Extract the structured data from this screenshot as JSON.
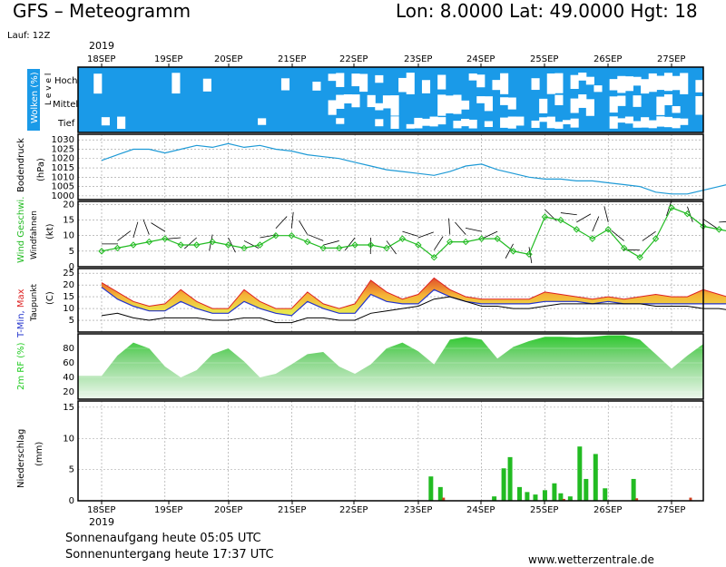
{
  "header": {
    "title": "GFS – Meteogramm",
    "location": "Lon: 8.0000  Lat: 49.0000  Hgt: 18",
    "run": "Lauf: 12Z",
    "year": "2019"
  },
  "footer": {
    "sunrise": "Sonnenaufgang heute 05:05 UTC",
    "sunset": "Sonnenuntergang heute 17:37 UTC",
    "url": "www.wetterzentrale.de"
  },
  "dates": [
    "18SEP",
    "19SEP",
    "20SEP",
    "21SEP",
    "22SEP",
    "23SEP",
    "24SEP",
    "25SEP",
    "26SEP",
    "27SEP"
  ],
  "colors": {
    "cloud": "#1a9ae8",
    "pressure": "#1e9ad6",
    "wind": "#22bb22",
    "rf": "#22cc22",
    "precip": "#22bb22",
    "precip_conv": "#d04020",
    "tmin": "#2233cc",
    "tmax": "#dd2222"
  },
  "chart_data": [
    {
      "type": "heatmap",
      "ylabel": "Wolken (%)",
      "ylabel2": "L e v e l",
      "levels": [
        "Hoch",
        "Mittel",
        "Tief"
      ]
    },
    {
      "type": "line",
      "ylabel": "Bodendruck",
      "ylabel2": "(hPa)",
      "ylim": [
        998,
        1033
      ],
      "yticks": [
        1000,
        1005,
        1010,
        1015,
        1020,
        1025,
        1030
      ],
      "x": [
        0,
        0.25,
        0.5,
        0.75,
        1,
        1.25,
        1.5,
        1.75,
        2,
        2.25,
        2.5,
        2.75,
        3,
        3.25,
        3.5,
        3.75,
        4,
        4.25,
        4.5,
        4.75,
        5,
        5.25,
        5.5,
        5.75,
        6,
        6.25,
        6.5,
        6.75,
        7,
        7.25,
        7.5,
        7.75,
        8,
        8.25,
        8.5,
        8.75,
        9,
        9.25,
        9.5,
        9.75,
        10,
        10.25
      ],
      "values": [
        1019,
        1022,
        1025,
        1025,
        1023,
        1025,
        1027,
        1026,
        1028,
        1026,
        1027,
        1025,
        1024,
        1022,
        1021,
        1020,
        1018,
        1016,
        1014,
        1013,
        1012,
        1011,
        1013,
        1016,
        1017,
        1014,
        1012,
        1010,
        1009,
        1009,
        1008,
        1008,
        1007,
        1006,
        1005,
        1002,
        1001,
        1001,
        1003,
        1005,
        1007,
        1010
      ]
    },
    {
      "type": "line",
      "ylabel": "Wind Geschwi.",
      "ylabel2": "Windfahnen",
      "ylabel3": "(kt)",
      "ylim": [
        0,
        21
      ],
      "yticks": [
        0,
        5,
        10,
        15,
        20
      ],
      "x": [
        0,
        0.25,
        0.5,
        0.75,
        1,
        1.25,
        1.5,
        1.75,
        2,
        2.25,
        2.5,
        2.75,
        3,
        3.25,
        3.5,
        3.75,
        4,
        4.25,
        4.5,
        4.75,
        5,
        5.25,
        5.5,
        5.75,
        6,
        6.25,
        6.5,
        6.75,
        7,
        7.25,
        7.5,
        7.75,
        8,
        8.25,
        8.5,
        8.75,
        9,
        9.25,
        9.5,
        9.75,
        10,
        10.25
      ],
      "values": [
        5,
        6,
        7,
        8,
        9,
        7,
        7,
        8,
        7,
        6,
        7,
        10,
        10,
        8,
        6,
        6,
        7,
        7,
        6,
        9,
        7,
        3,
        8,
        8,
        9,
        9,
        5,
        4,
        16,
        15,
        12,
        9,
        12,
        6,
        3,
        9,
        19,
        17,
        13,
        12,
        11,
        11
      ]
    },
    {
      "type": "area",
      "ylabel": "T-Min, Max",
      "ylabel2": "Taupunkt",
      "ylabel3": "(C)",
      "ylim": [
        0,
        27
      ],
      "yticks": [
        5,
        10,
        15,
        20,
        25
      ],
      "x": [
        0,
        0.25,
        0.5,
        0.75,
        1,
        1.25,
        1.5,
        1.75,
        2,
        2.25,
        2.5,
        2.75,
        3,
        3.25,
        3.5,
        3.75,
        4,
        4.25,
        4.5,
        4.75,
        5,
        5.25,
        5.5,
        5.75,
        6,
        6.25,
        6.5,
        6.75,
        7,
        7.25,
        7.5,
        7.75,
        8,
        8.25,
        8.5,
        8.75,
        9,
        9.25,
        9.5,
        9.75,
        10,
        10.25
      ],
      "series": [
        {
          "name": "T-Min",
          "values": [
            19,
            14,
            11,
            9,
            9,
            13,
            10,
            8,
            8,
            13,
            10,
            8,
            7,
            13,
            10,
            8,
            8,
            16,
            13,
            12,
            12,
            18,
            15,
            13,
            12,
            12,
            12,
            12,
            13,
            13,
            13,
            12,
            13,
            12,
            12,
            12,
            12,
            12,
            12,
            12,
            12,
            12
          ]
        },
        {
          "name": "Max",
          "values": [
            21,
            17,
            13,
            11,
            12,
            18,
            13,
            10,
            10,
            18,
            13,
            10,
            10,
            17,
            12,
            10,
            12,
            22,
            17,
            14,
            16,
            23,
            18,
            15,
            14,
            14,
            14,
            14,
            17,
            16,
            15,
            14,
            15,
            14,
            15,
            16,
            15,
            15,
            18,
            16,
            14,
            15
          ]
        },
        {
          "name": "Taupunkt",
          "values": [
            7,
            8,
            6,
            5,
            6,
            6,
            6,
            5,
            5,
            6,
            6,
            4,
            4,
            6,
            6,
            5,
            5,
            8,
            9,
            10,
            11,
            14,
            15,
            13,
            11,
            11,
            10,
            10,
            11,
            12,
            12,
            12,
            12,
            12,
            12,
            11,
            11,
            11,
            10,
            10,
            9,
            9
          ]
        }
      ]
    },
    {
      "type": "area",
      "ylabel": "2m RF (%)",
      "ylim": [
        10,
        100
      ],
      "yticks": [
        20,
        40,
        60,
        80
      ],
      "x": [
        0,
        0.25,
        0.5,
        0.75,
        1,
        1.25,
        1.5,
        1.75,
        2,
        2.25,
        2.5,
        2.75,
        3,
        3.25,
        3.5,
        3.75,
        4,
        4.25,
        4.5,
        4.75,
        5,
        5.25,
        5.5,
        5.75,
        6,
        6.25,
        6.5,
        6.75,
        7,
        7.25,
        7.5,
        7.75,
        8,
        8.25,
        8.5,
        8.75,
        9,
        9.25,
        9.5,
        9.75,
        10,
        10.25
      ],
      "values": [
        42,
        70,
        88,
        80,
        55,
        40,
        50,
        72,
        80,
        62,
        40,
        45,
        58,
        72,
        75,
        55,
        45,
        58,
        80,
        88,
        76,
        58,
        92,
        96,
        92,
        66,
        82,
        90,
        96,
        96,
        95,
        96,
        98,
        98,
        92,
        72,
        52,
        70,
        86,
        88,
        78,
        70
      ]
    },
    {
      "type": "bar",
      "ylabel": "Niederschlag",
      "ylabel2": "(mm)",
      "ylim": [
        0,
        16
      ],
      "yticks": [
        0,
        5,
        10,
        15
      ],
      "x": [
        5.2,
        5.35,
        6.2,
        6.35,
        6.45,
        6.6,
        6.72,
        6.85,
        7.0,
        7.15,
        7.25,
        7.4,
        7.55,
        7.65,
        7.8,
        7.95,
        8.4
      ],
      "values": [
        3.9,
        2.2,
        0.7,
        5.2,
        7.0,
        2.2,
        1.4,
        1.0,
        1.7,
        2.8,
        1.2,
        0.7,
        8.7,
        3.5,
        7.5,
        2.0,
        3.5
      ],
      "conv_x": [
        5.35,
        7.25,
        8.4,
        9.25
      ],
      "conv_values": [
        0.5,
        0.3,
        0.4,
        0.5
      ]
    }
  ]
}
